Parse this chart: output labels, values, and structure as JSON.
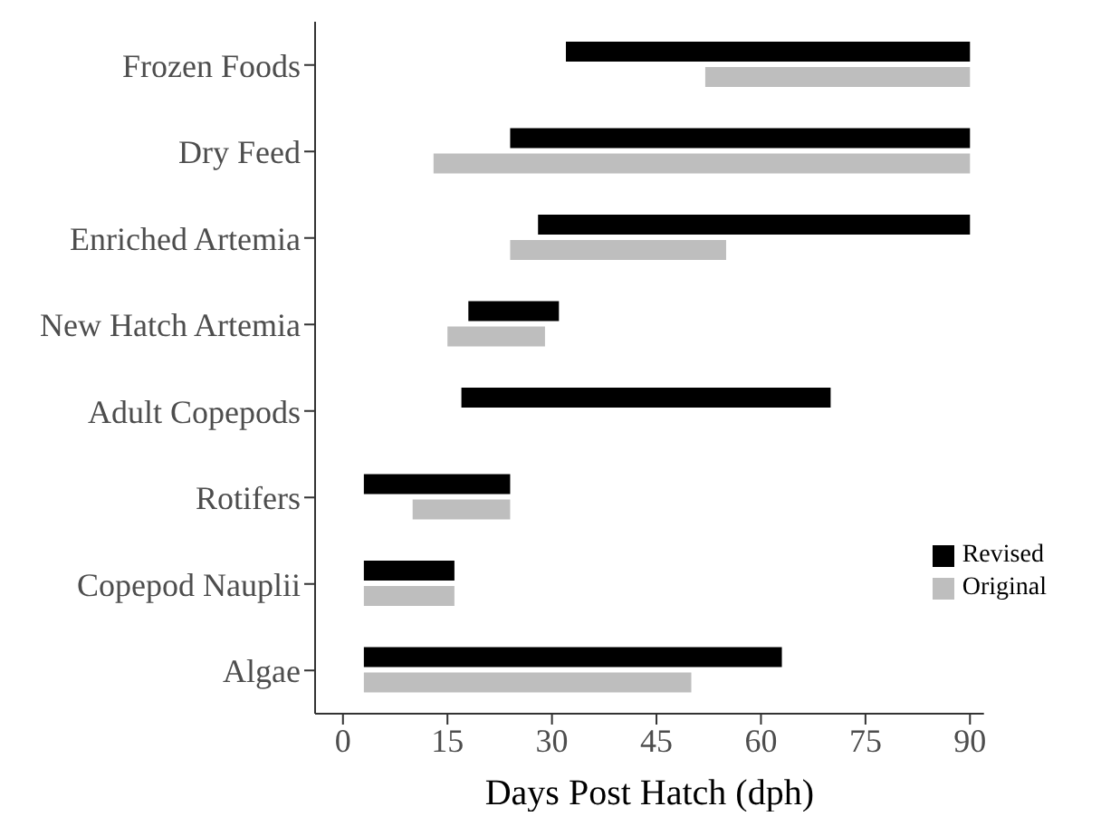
{
  "chart_data": {
    "type": "bar",
    "orientation": "horizontal",
    "xlabel": "Days Post Hatch (dph)",
    "categories": [
      "Frozen Foods",
      "Dry Feed",
      "Enriched Artemia",
      "New Hatch Artemia",
      "Adult Copepods",
      "Rotifers",
      "Copepod Nauplii",
      "Algae"
    ],
    "series": [
      {
        "name": "Revised",
        "color": "#000000",
        "base": [
          32,
          24,
          28,
          18,
          17,
          3,
          3,
          3
        ],
        "values": [
          58,
          66,
          62,
          13,
          53,
          21,
          13,
          60
        ]
      },
      {
        "name": "Original",
        "color": "#bebebe",
        "base": [
          52,
          13,
          24,
          15,
          null,
          10,
          3,
          3
        ],
        "values": [
          38,
          77,
          31,
          14,
          null,
          14,
          13,
          47
        ]
      }
    ],
    "xlim": [
      -4,
      92
    ],
    "xticks": [
      0,
      15,
      30,
      45,
      60,
      75,
      90
    ],
    "grid": false,
    "legend": "right"
  }
}
